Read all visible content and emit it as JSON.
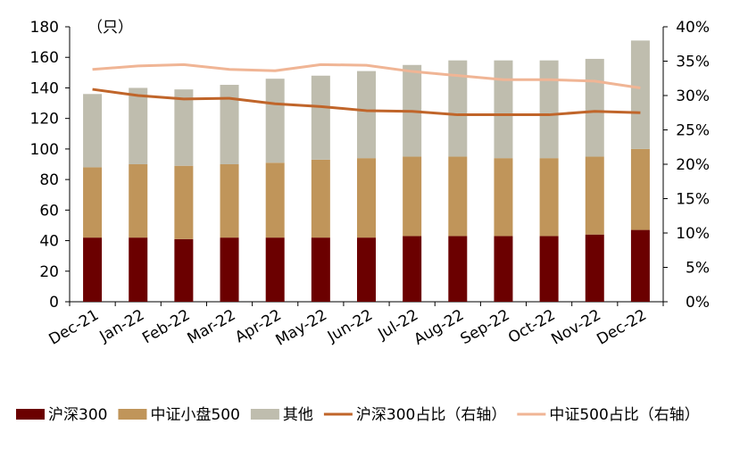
{
  "chart_data": {
    "type": "bar",
    "stacked": true,
    "unit_label": "（只）",
    "categories": [
      "Dec-21",
      "Jan-22",
      "Feb-22",
      "Mar-22",
      "Apr-22",
      "May-22",
      "Jun-22",
      "Jul-22",
      "Aug-22",
      "Sep-22",
      "Oct-22",
      "Nov-22",
      "Dec-22"
    ],
    "series": [
      {
        "name": "沪深300",
        "type": "bar",
        "axis": "left",
        "color": "#6b0000",
        "values": [
          42,
          42,
          41,
          42,
          42,
          42,
          42,
          43,
          43,
          43,
          43,
          44,
          47
        ]
      },
      {
        "name": "中证小盘500",
        "type": "bar",
        "axis": "left",
        "color": "#c0955a",
        "values": [
          46,
          48,
          48,
          48,
          49,
          51,
          52,
          52,
          52,
          51,
          51,
          51,
          53
        ]
      },
      {
        "name": "其他",
        "type": "bar",
        "axis": "left",
        "color": "#bfbdae",
        "values": [
          48,
          50,
          50,
          52,
          55,
          55,
          57,
          60,
          63,
          64,
          64,
          64,
          71
        ]
      },
      {
        "name": "沪深300占比（右轴）",
        "type": "line",
        "axis": "right",
        "color": "#c0652a",
        "values": [
          0.309,
          0.3,
          0.295,
          0.296,
          0.288,
          0.284,
          0.278,
          0.277,
          0.272,
          0.272,
          0.272,
          0.277,
          0.275
        ]
      },
      {
        "name": "中证500占比（右轴）",
        "type": "line",
        "axis": "right",
        "color": "#f0b595",
        "values": [
          0.338,
          0.343,
          0.345,
          0.338,
          0.336,
          0.345,
          0.344,
          0.335,
          0.329,
          0.323,
          0.323,
          0.321,
          0.311
        ]
      }
    ],
    "left_axis": {
      "min": 0,
      "max": 180,
      "step": 20,
      "ticks": [
        "0",
        "20",
        "40",
        "60",
        "80",
        "100",
        "120",
        "140",
        "160",
        "180"
      ]
    },
    "right_axis": {
      "min": 0,
      "max": 0.4,
      "step": 0.05,
      "ticks": [
        "0%",
        "5%",
        "10%",
        "15%",
        "20%",
        "25%",
        "30%",
        "35%",
        "40%"
      ]
    },
    "grid": false,
    "legend_position": "bottom",
    "title": "",
    "xlabel": "",
    "ylabel": ""
  }
}
